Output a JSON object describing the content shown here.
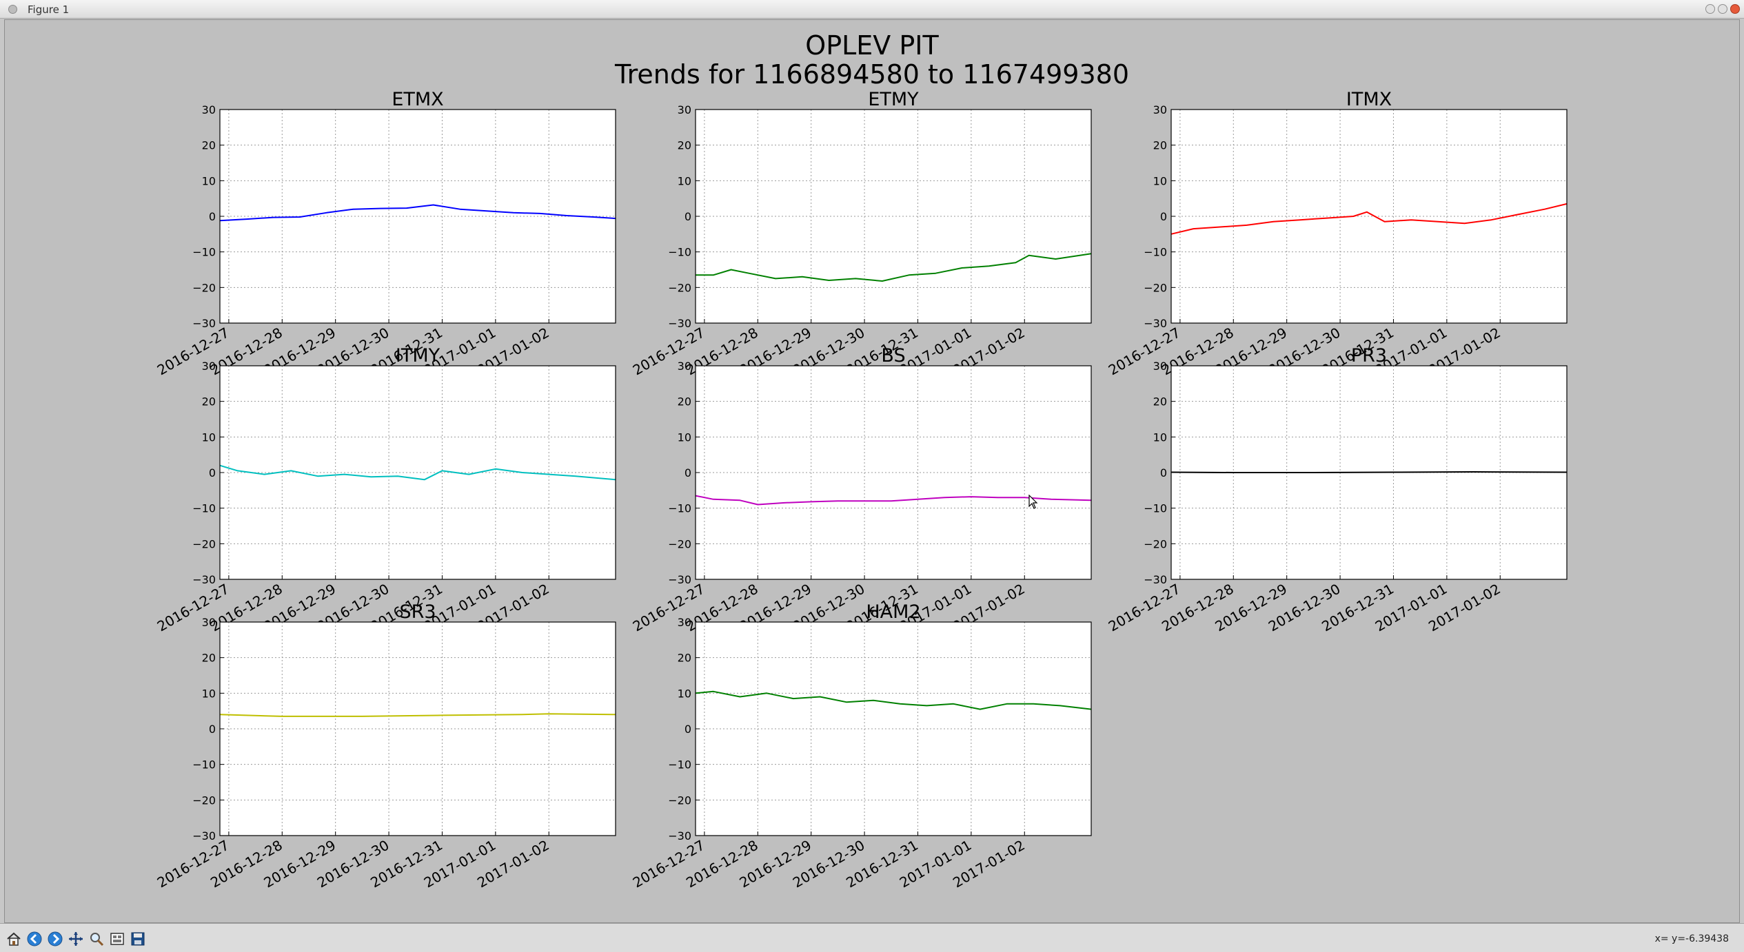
{
  "window": {
    "title": "Figure 1"
  },
  "figure": {
    "title_line1": "OPLEV PIT",
    "title_line2": "Trends for 1166894580 to 1167499380"
  },
  "statusbar": {
    "coords": "x= y=-6.39438"
  },
  "toolbar": {
    "buttons": [
      {
        "name": "home",
        "icon": "home-icon"
      },
      {
        "name": "back",
        "icon": "arrow-left-icon"
      },
      {
        "name": "forward",
        "icon": "arrow-right-icon"
      },
      {
        "name": "pan",
        "icon": "move-icon"
      },
      {
        "name": "zoom",
        "icon": "zoom-icon"
      },
      {
        "name": "subplots",
        "icon": "subplots-icon"
      },
      {
        "name": "save",
        "icon": "save-icon"
      }
    ]
  },
  "chart_data": [
    {
      "type": "line",
      "title": "ETMX",
      "color": "#0000ff",
      "ylim": [
        -30,
        30
      ],
      "yticks": [
        "30",
        "20",
        "10",
        "0",
        "−10",
        "−20",
        "−30"
      ],
      "xlim": [
        "2016-12-26T20:00",
        "2017-01-03T06:00"
      ],
      "xticks": [
        "2016-12-27",
        "2016-12-28",
        "2016-12-29",
        "2016-12-30",
        "2016-12-31",
        "2017-01-01",
        "2017-01-02"
      ],
      "grid": true,
      "x": [
        "2016-12-26T20:00",
        "2016-12-27T08:00",
        "2016-12-27T20:00",
        "2016-12-28T08:00",
        "2016-12-28T20:00",
        "2016-12-29T08:00",
        "2016-12-29T20:00",
        "2016-12-30T08:00",
        "2016-12-30T20:00",
        "2016-12-31T08:00",
        "2016-12-31T20:00",
        "2017-01-01T08:00",
        "2017-01-01T20:00",
        "2017-01-02T08:00",
        "2017-01-02T20:00",
        "2017-01-03T06:00"
      ],
      "y": [
        -1.2,
        -0.8,
        -0.3,
        -0.2,
        1.0,
        2.0,
        2.2,
        2.3,
        3.2,
        2.0,
        1.5,
        1.0,
        0.8,
        0.2,
        -0.2,
        -0.6
      ]
    },
    {
      "type": "line",
      "title": "ETMY",
      "color": "#008000",
      "ylim": [
        -30,
        30
      ],
      "yticks": [
        "30",
        "20",
        "10",
        "0",
        "−10",
        "−20",
        "−30"
      ],
      "xlim": [
        "2016-12-26T20:00",
        "2017-01-03T06:00"
      ],
      "xticks": [
        "2016-12-27",
        "2016-12-28",
        "2016-12-29",
        "2016-12-30",
        "2016-12-31",
        "2017-01-01",
        "2017-01-02"
      ],
      "grid": true,
      "x": [
        "2016-12-26T20:00",
        "2016-12-27T04:00",
        "2016-12-27T12:00",
        "2016-12-27T20:00",
        "2016-12-28T08:00",
        "2016-12-28T20:00",
        "2016-12-29T08:00",
        "2016-12-29T20:00",
        "2016-12-30T08:00",
        "2016-12-30T20:00",
        "2016-12-31T08:00",
        "2016-12-31T20:00",
        "2017-01-01T08:00",
        "2017-01-01T20:00",
        "2017-01-02T02:00",
        "2017-01-02T14:00",
        "2017-01-03T06:00"
      ],
      "y": [
        -16.5,
        -16.5,
        -15.0,
        -16.0,
        -17.5,
        -17.0,
        -18.0,
        -17.5,
        -18.2,
        -16.5,
        -16.0,
        -14.5,
        -14.0,
        -13.0,
        -11.0,
        -12.0,
        -10.5
      ]
    },
    {
      "type": "line",
      "title": "ITMX",
      "color": "#ff0000",
      "ylim": [
        -30,
        30
      ],
      "yticks": [
        "30",
        "20",
        "10",
        "0",
        "−10",
        "−20",
        "−30"
      ],
      "xlim": [
        "2016-12-26T20:00",
        "2017-01-03T06:00"
      ],
      "xticks": [
        "2016-12-27",
        "2016-12-28",
        "2016-12-29",
        "2016-12-30",
        "2016-12-31",
        "2017-01-01",
        "2017-01-02"
      ],
      "grid": true,
      "x": [
        "2016-12-26T20:00",
        "2016-12-27T06:00",
        "2016-12-27T18:00",
        "2016-12-28T06:00",
        "2016-12-28T18:00",
        "2016-12-29T06:00",
        "2016-12-29T18:00",
        "2016-12-30T06:00",
        "2016-12-30T12:00",
        "2016-12-30T20:00",
        "2016-12-31T08:00",
        "2016-12-31T20:00",
        "2017-01-01T08:00",
        "2017-01-01T20:00",
        "2017-01-02T08:00",
        "2017-01-02T20:00",
        "2017-01-03T06:00"
      ],
      "y": [
        -5.0,
        -3.5,
        -3.0,
        -2.5,
        -1.5,
        -1.0,
        -0.5,
        0.0,
        1.2,
        -1.5,
        -1.0,
        -1.5,
        -2.0,
        -1.0,
        0.5,
        2.0,
        3.5
      ]
    },
    {
      "type": "line",
      "title": "ITMY",
      "color": "#00bfbf",
      "ylim": [
        -30,
        30
      ],
      "yticks": [
        "30",
        "20",
        "10",
        "0",
        "−10",
        "−20",
        "−30"
      ],
      "xlim": [
        "2016-12-26T20:00",
        "2017-01-03T06:00"
      ],
      "xticks": [
        "2016-12-27",
        "2016-12-28",
        "2016-12-29",
        "2016-12-30",
        "2016-12-31",
        "2017-01-01",
        "2017-01-02"
      ],
      "grid": true,
      "x": [
        "2016-12-26T20:00",
        "2016-12-27T04:00",
        "2016-12-27T16:00",
        "2016-12-28T04:00",
        "2016-12-28T16:00",
        "2016-12-29T04:00",
        "2016-12-29T16:00",
        "2016-12-30T04:00",
        "2016-12-30T16:00",
        "2016-12-31T00:00",
        "2016-12-31T12:00",
        "2017-01-01T00:00",
        "2017-01-01T12:00",
        "2017-01-02T00:00",
        "2017-01-02T12:00",
        "2017-01-03T06:00"
      ],
      "y": [
        2.0,
        0.5,
        -0.5,
        0.5,
        -1.0,
        -0.5,
        -1.2,
        -1.0,
        -2.0,
        0.5,
        -0.5,
        1.0,
        0.0,
        -0.5,
        -1.0,
        -2.0
      ]
    },
    {
      "type": "line",
      "title": "BS",
      "color": "#bf00bf",
      "ylim": [
        -30,
        30
      ],
      "yticks": [
        "30",
        "20",
        "10",
        "0",
        "−10",
        "−20",
        "−30"
      ],
      "xlim": [
        "2016-12-26T20:00",
        "2017-01-03T06:00"
      ],
      "xticks": [
        "2016-12-27",
        "2016-12-28",
        "2016-12-29",
        "2016-12-30",
        "2016-12-31",
        "2017-01-01",
        "2017-01-02"
      ],
      "grid": true,
      "x": [
        "2016-12-26T20:00",
        "2016-12-27T04:00",
        "2016-12-27T16:00",
        "2016-12-28T00:00",
        "2016-12-28T12:00",
        "2016-12-29T00:00",
        "2016-12-29T12:00",
        "2016-12-30T00:00",
        "2016-12-30T12:00",
        "2016-12-31T00:00",
        "2016-12-31T12:00",
        "2017-01-01T00:00",
        "2017-01-01T12:00",
        "2017-01-02T00:00",
        "2017-01-02T12:00",
        "2017-01-03T06:00"
      ],
      "y": [
        -6.5,
        -7.5,
        -7.8,
        -9.0,
        -8.5,
        -8.2,
        -8.0,
        -8.0,
        -8.0,
        -7.5,
        -7.0,
        -6.8,
        -7.0,
        -7.0,
        -7.5,
        -7.8
      ]
    },
    {
      "type": "line",
      "title": "PR3",
      "color": "#000000",
      "ylim": [
        -30,
        30
      ],
      "yticks": [
        "30",
        "20",
        "10",
        "0",
        "−10",
        "−20",
        "−30"
      ],
      "xlim": [
        "2016-12-26T20:00",
        "2017-01-03T06:00"
      ],
      "xticks": [
        "2016-12-27",
        "2016-12-28",
        "2016-12-29",
        "2016-12-30",
        "2016-12-31",
        "2017-01-01",
        "2017-01-02"
      ],
      "grid": true,
      "x": [
        "2016-12-26T20:00",
        "2016-12-28T00:00",
        "2016-12-29T12:00",
        "2016-12-31T00:00",
        "2017-01-01T12:00",
        "2017-01-03T06:00"
      ],
      "y": [
        0.1,
        0.0,
        0.0,
        0.1,
        0.2,
        0.1
      ]
    },
    {
      "type": "line",
      "title": "SR3",
      "color": "#bfbf00",
      "ylim": [
        -30,
        30
      ],
      "yticks": [
        "30",
        "20",
        "10",
        "0",
        "−10",
        "−20",
        "−30"
      ],
      "xlim": [
        "2016-12-26T20:00",
        "2017-01-03T06:00"
      ],
      "xticks": [
        "2016-12-27",
        "2016-12-28",
        "2016-12-29",
        "2016-12-30",
        "2016-12-31",
        "2017-01-01",
        "2017-01-02"
      ],
      "grid": true,
      "x": [
        "2016-12-26T20:00",
        "2016-12-28T00:00",
        "2016-12-29T12:00",
        "2016-12-31T00:00",
        "2017-01-01T12:00",
        "2017-01-02T00:00",
        "2017-01-03T06:00"
      ],
      "y": [
        4.0,
        3.5,
        3.5,
        3.8,
        4.0,
        4.2,
        4.0
      ]
    },
    {
      "type": "line",
      "title": "HAM2",
      "color": "#008000",
      "ylim": [
        -30,
        30
      ],
      "yticks": [
        "30",
        "20",
        "10",
        "0",
        "−10",
        "−20",
        "−30"
      ],
      "xlim": [
        "2016-12-26T20:00",
        "2017-01-03T06:00"
      ],
      "xticks": [
        "2016-12-27",
        "2016-12-28",
        "2016-12-29",
        "2016-12-30",
        "2016-12-31",
        "2017-01-01",
        "2017-01-02"
      ],
      "grid": true,
      "x": [
        "2016-12-26T20:00",
        "2016-12-27T04:00",
        "2016-12-27T16:00",
        "2016-12-28T04:00",
        "2016-12-28T16:00",
        "2016-12-29T04:00",
        "2016-12-29T16:00",
        "2016-12-30T04:00",
        "2016-12-30T16:00",
        "2016-12-31T04:00",
        "2016-12-31T16:00",
        "2017-01-01T04:00",
        "2017-01-01T16:00",
        "2017-01-02T04:00",
        "2017-01-02T16:00",
        "2017-01-03T06:00"
      ],
      "y": [
        10.0,
        10.5,
        9.0,
        10.0,
        8.5,
        9.0,
        7.5,
        8.0,
        7.0,
        6.5,
        7.0,
        5.5,
        7.0,
        7.0,
        6.5,
        5.5
      ]
    }
  ]
}
